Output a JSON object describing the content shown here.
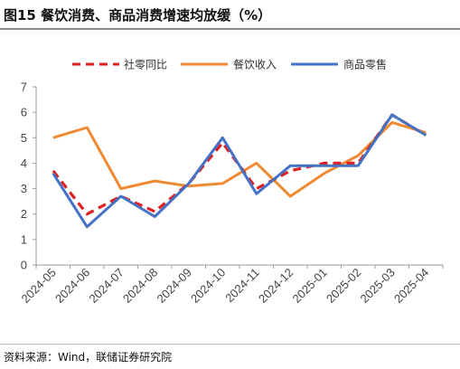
{
  "title": "图15 餐饮消费、商品消费增速均放缓（%）",
  "source": "资料来源：Wind，联储证券研究院",
  "chart_data": {
    "type": "line",
    "categories": [
      "2024-05",
      "2024-06",
      "2024-07",
      "2024-08",
      "2024-09",
      "2024-10",
      "2024-11",
      "2024-12",
      "2025-01",
      "2025-02",
      "2025-03",
      "2025-04"
    ],
    "ylim": [
      0,
      7
    ],
    "yticks": [
      0,
      1,
      2,
      3,
      4,
      5,
      6,
      7
    ],
    "grid": false,
    "legend_position": "top",
    "series": [
      {
        "name": "社零同比",
        "color": "#e02020",
        "style": "dashed",
        "values": [
          3.7,
          2.0,
          2.7,
          2.1,
          3.2,
          4.8,
          3.0,
          3.7,
          4.0,
          4.0,
          5.9,
          5.1
        ]
      },
      {
        "name": "餐饮收入",
        "color": "#ef8a33",
        "style": "solid",
        "values": [
          5.0,
          5.4,
          3.0,
          3.3,
          3.1,
          3.2,
          4.0,
          2.7,
          3.6,
          4.3,
          5.6,
          5.2
        ]
      },
      {
        "name": "商品零售",
        "color": "#4472c4",
        "style": "solid",
        "values": [
          3.6,
          1.5,
          2.7,
          1.9,
          3.2,
          5.0,
          2.8,
          3.9,
          3.9,
          3.9,
          5.9,
          5.1
        ]
      }
    ]
  }
}
